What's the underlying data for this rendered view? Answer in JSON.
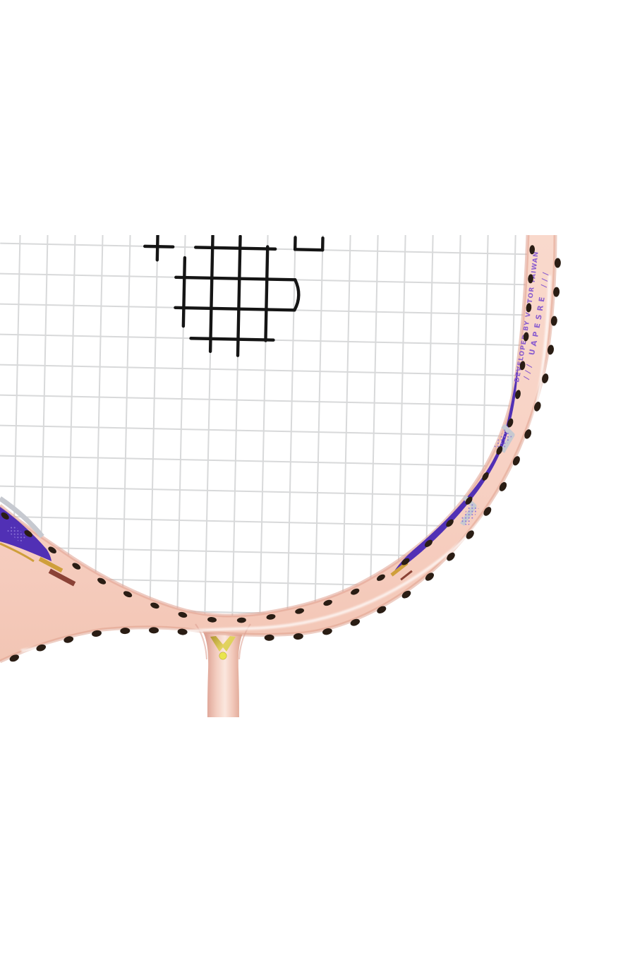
{
  "photo": {
    "frame_text_primary": "DEVELOPED BY VICTOR TAIWAN",
    "frame_text_secondary": "/// UAPESRE ///",
    "colors": {
      "frame_pink": "#f7d2c5",
      "frame_pink_deep": "#eab7a7",
      "decal_purple": "#5130b5",
      "decal_silver": "#c6c9d0",
      "accent_gold": "#cf9f3a",
      "accent_maroon": "#8a4236",
      "logo_gold_light": "#e9e54e",
      "string_gray": "#d8d9da",
      "stencil_black": "#151515",
      "grommet_dark": "#2a1d14",
      "text_purple": "#8759cf"
    },
    "icons": {
      "brand_mark": "victor-v-logo",
      "string_print": "string-stencil-mark"
    }
  }
}
